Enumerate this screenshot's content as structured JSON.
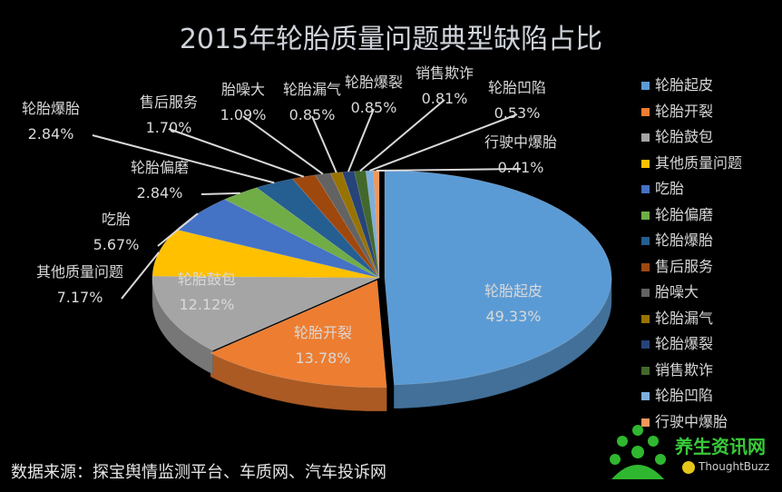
{
  "chart_data": {
    "type": "pie",
    "title": "2015年轮胎质量问题典型缺陷占比",
    "series": [
      {
        "name": "轮胎起皮",
        "value": 49.33,
        "label": "49.33%",
        "color": "#5b9bd5"
      },
      {
        "name": "轮胎开裂",
        "value": 13.78,
        "label": "13.78%",
        "color": "#ed7d31"
      },
      {
        "name": "轮胎鼓包",
        "value": 12.12,
        "label": "12.12%",
        "color": "#a5a5a5"
      },
      {
        "name": "其他质量问题",
        "value": 7.17,
        "label": "7.17%",
        "color": "#ffc000"
      },
      {
        "name": "吃胎",
        "value": 5.67,
        "label": "5.67%",
        "color": "#4472c4"
      },
      {
        "name": "轮胎偏磨",
        "value": 2.84,
        "label": "2.84%",
        "color": "#70ad47"
      },
      {
        "name": "轮胎爆胎",
        "value": 2.84,
        "label": "2.84%",
        "color": "#255e91"
      },
      {
        "name": "售后服务",
        "value": 1.7,
        "label": "1.70%",
        "color": "#9e480e"
      },
      {
        "name": "胎噪大",
        "value": 1.09,
        "label": "1.09%",
        "color": "#636363"
      },
      {
        "name": "轮胎漏气",
        "value": 0.85,
        "label": "0.85%",
        "color": "#997300"
      },
      {
        "name": "轮胎爆裂",
        "value": 0.85,
        "label": "0.85%",
        "color": "#264478"
      },
      {
        "name": "销售欺诈",
        "value": 0.81,
        "label": "0.81%",
        "color": "#43682b"
      },
      {
        "name": "轮胎凹陷",
        "value": 0.53,
        "label": "0.53%",
        "color": "#7cafdd"
      },
      {
        "name": "行驶中爆胎",
        "value": 0.41,
        "label": "0.41%",
        "color": "#f1975a"
      }
    ],
    "legend_position": "right",
    "style": "3d-exploded-pie"
  },
  "footer": {
    "source": "数据来源：探宝舆情监测平台、车质网、汽车投诉网"
  },
  "watermark": {
    "brand": "养生资讯网",
    "sub": "ThoughtBuzz"
  }
}
